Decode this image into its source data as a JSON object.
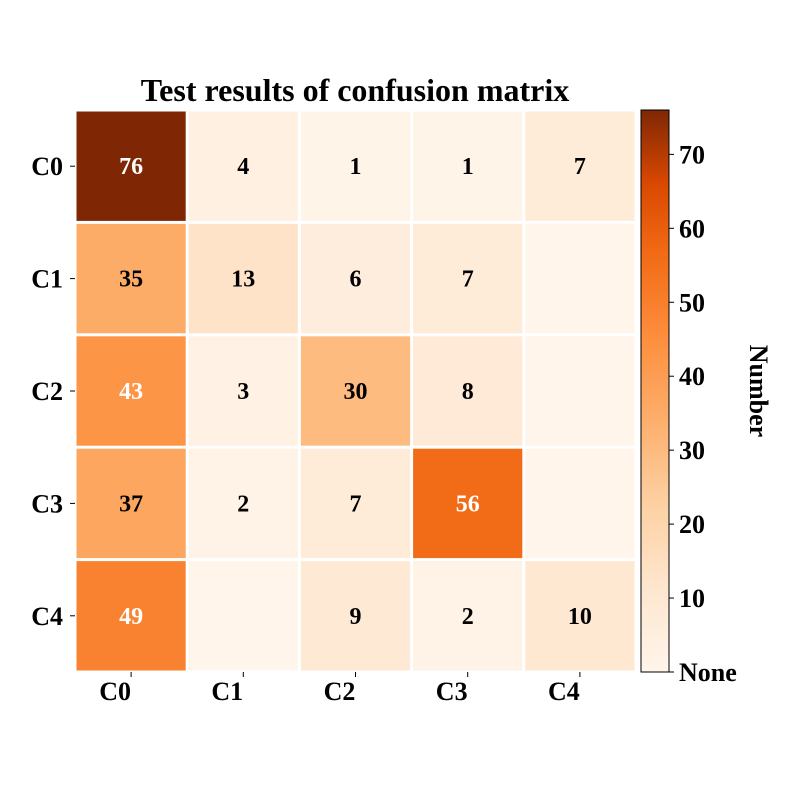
{
  "chart_data": {
    "type": "heatmap",
    "title": "Test results of confusion matrix",
    "row_labels": [
      "C0",
      "C1",
      "C2",
      "C3",
      "C4"
    ],
    "col_labels": [
      "C0",
      "C1",
      "C2",
      "C3",
      "C4"
    ],
    "values": [
      [
        76,
        4,
        1,
        1,
        7
      ],
      [
        35,
        13,
        6,
        7,
        null
      ],
      [
        43,
        3,
        30,
        8,
        null
      ],
      [
        37,
        2,
        7,
        56,
        null
      ],
      [
        49,
        null,
        9,
        2,
        10
      ]
    ],
    "colorbar": {
      "label": "Number",
      "range": [
        0,
        76
      ],
      "ticks": [
        {
          "value": 0,
          "label": "None"
        },
        {
          "value": 10,
          "label": "10"
        },
        {
          "value": 20,
          "label": "20"
        },
        {
          "value": 30,
          "label": "30"
        },
        {
          "value": 40,
          "label": "40"
        },
        {
          "value": 50,
          "label": "50"
        },
        {
          "value": 60,
          "label": "60"
        },
        {
          "value": 70,
          "label": "70"
        }
      ],
      "colormap": "Oranges"
    }
  }
}
